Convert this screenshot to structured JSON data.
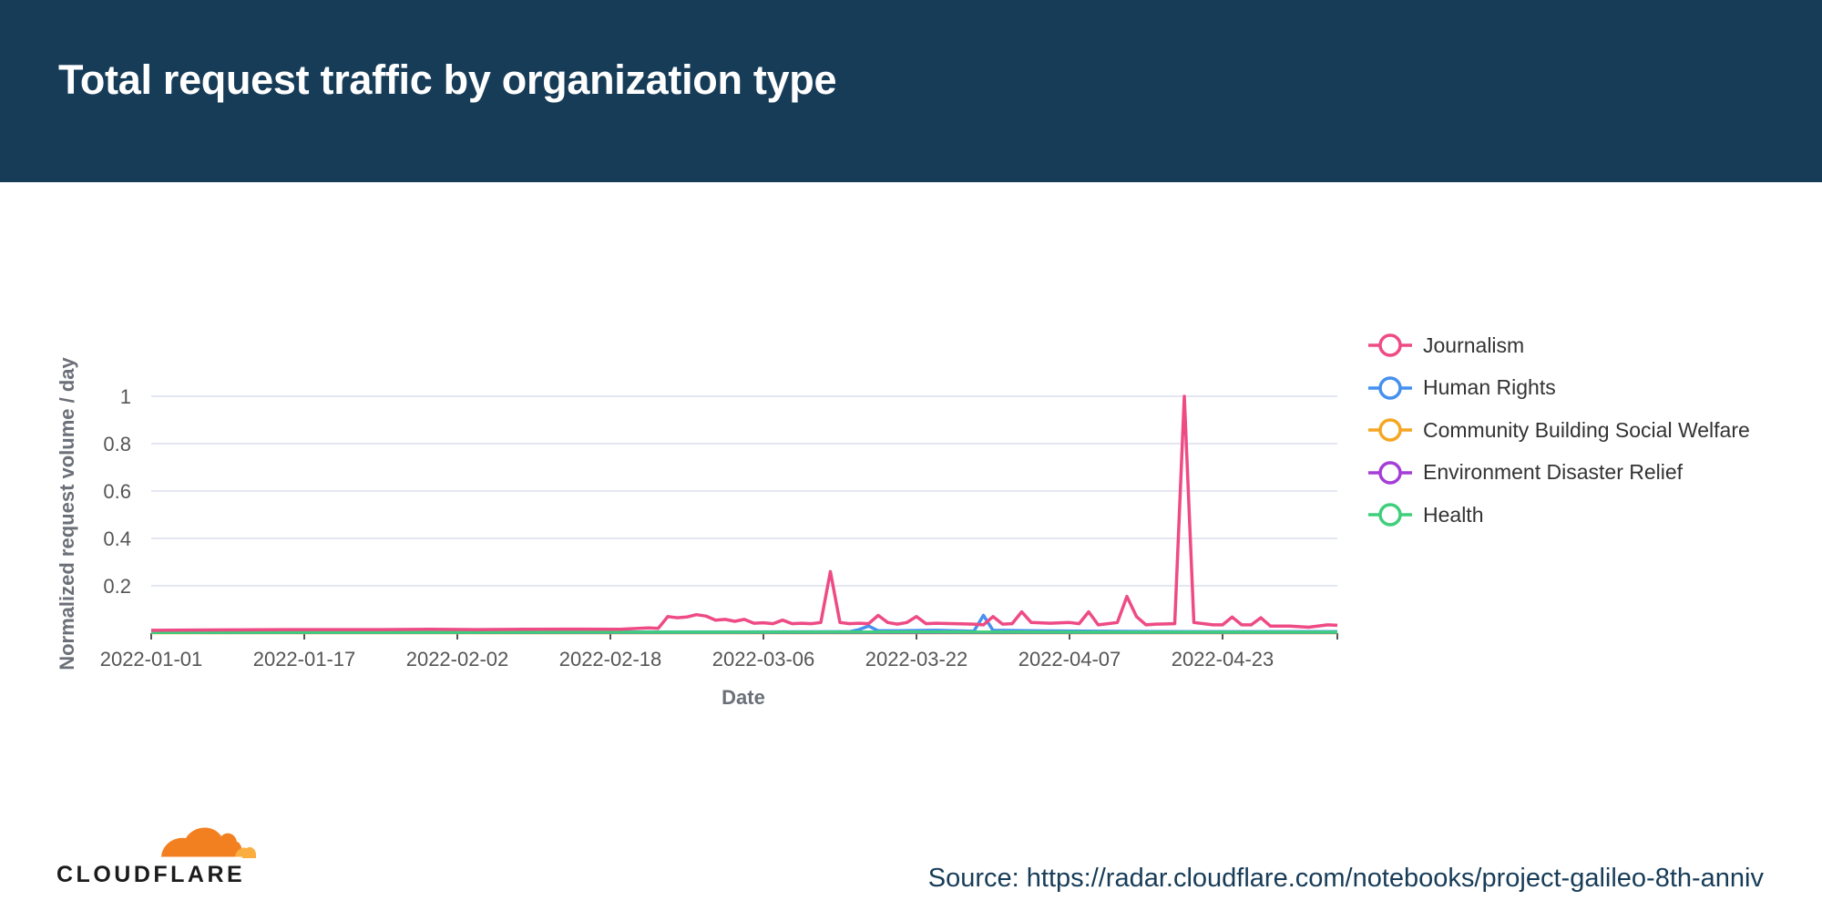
{
  "header": {
    "title": "Total request traffic by organization type"
  },
  "footer": {
    "source": "Source: https://radar.cloudflare.com/notebooks/project-galileo-8th-anniv",
    "logo_text": "CLOUDFLARE"
  },
  "colors": {
    "header_bg": "#173c58",
    "logo_orange": "#f38020",
    "logo_light": "#faae40"
  },
  "chart_data": {
    "type": "line",
    "title": "Total request traffic by organization type",
    "xlabel": "Date",
    "ylabel": "Normalized request volume / day",
    "ylim": [
      0,
      1
    ],
    "yticks": [
      0.2,
      0.4,
      0.6,
      0.8,
      1
    ],
    "ytick_labels": [
      "0.2",
      "0.4",
      "0.6",
      "0.8",
      "1"
    ],
    "x_range": [
      "2022-01-01",
      "2022-05-05"
    ],
    "xticks": [
      "2022-01-01",
      "2022-01-17",
      "2022-02-02",
      "2022-02-18",
      "2022-03-06",
      "2022-03-22",
      "2022-04-07",
      "2022-04-23"
    ],
    "grid": true,
    "legend_position": "right",
    "series": [
      {
        "name": "Journalism",
        "color": "#ee4b85",
        "points": [
          [
            "2022-01-01",
            0.012
          ],
          [
            "2022-01-05",
            0.013
          ],
          [
            "2022-01-10",
            0.014
          ],
          [
            "2022-01-15",
            0.015
          ],
          [
            "2022-01-20",
            0.015
          ],
          [
            "2022-01-25",
            0.015
          ],
          [
            "2022-01-30",
            0.016
          ],
          [
            "2022-02-04",
            0.015
          ],
          [
            "2022-02-09",
            0.016
          ],
          [
            "2022-02-14",
            0.017
          ],
          [
            "2022-02-19",
            0.016
          ],
          [
            "2022-02-22",
            0.022
          ],
          [
            "2022-02-23",
            0.02
          ],
          [
            "2022-02-24",
            0.07
          ],
          [
            "2022-02-25",
            0.065
          ],
          [
            "2022-02-26",
            0.068
          ],
          [
            "2022-02-27",
            0.078
          ],
          [
            "2022-02-28",
            0.072
          ],
          [
            "2022-03-01",
            0.055
          ],
          [
            "2022-03-02",
            0.058
          ],
          [
            "2022-03-03",
            0.05
          ],
          [
            "2022-03-04",
            0.058
          ],
          [
            "2022-03-05",
            0.042
          ],
          [
            "2022-03-06",
            0.044
          ],
          [
            "2022-03-07",
            0.04
          ],
          [
            "2022-03-08",
            0.055
          ],
          [
            "2022-03-09",
            0.04
          ],
          [
            "2022-03-10",
            0.042
          ],
          [
            "2022-03-11",
            0.04
          ],
          [
            "2022-03-12",
            0.045
          ],
          [
            "2022-03-13",
            0.26
          ],
          [
            "2022-03-14",
            0.045
          ],
          [
            "2022-03-15",
            0.04
          ],
          [
            "2022-03-16",
            0.042
          ],
          [
            "2022-03-17",
            0.04
          ],
          [
            "2022-03-18",
            0.075
          ],
          [
            "2022-03-19",
            0.045
          ],
          [
            "2022-03-20",
            0.038
          ],
          [
            "2022-03-21",
            0.045
          ],
          [
            "2022-03-22",
            0.07
          ],
          [
            "2022-03-23",
            0.04
          ],
          [
            "2022-03-24",
            0.042
          ],
          [
            "2022-03-26",
            0.04
          ],
          [
            "2022-03-28",
            0.038
          ],
          [
            "2022-03-29",
            0.035
          ],
          [
            "2022-03-30",
            0.07
          ],
          [
            "2022-03-31",
            0.038
          ],
          [
            "2022-04-01",
            0.04
          ],
          [
            "2022-04-02",
            0.09
          ],
          [
            "2022-04-03",
            0.045
          ],
          [
            "2022-04-05",
            0.042
          ],
          [
            "2022-04-07",
            0.045
          ],
          [
            "2022-04-08",
            0.04
          ],
          [
            "2022-04-09",
            0.09
          ],
          [
            "2022-04-10",
            0.035
          ],
          [
            "2022-04-11",
            0.04
          ],
          [
            "2022-04-12",
            0.045
          ],
          [
            "2022-04-13",
            0.155
          ],
          [
            "2022-04-14",
            0.07
          ],
          [
            "2022-04-15",
            0.035
          ],
          [
            "2022-04-16",
            0.038
          ],
          [
            "2022-04-18",
            0.04
          ],
          [
            "2022-04-19",
            1.0
          ],
          [
            "2022-04-20",
            0.045
          ],
          [
            "2022-04-22",
            0.035
          ],
          [
            "2022-04-23",
            0.035
          ],
          [
            "2022-04-24",
            0.068
          ],
          [
            "2022-04-25",
            0.035
          ],
          [
            "2022-04-26",
            0.035
          ],
          [
            "2022-04-27",
            0.065
          ],
          [
            "2022-04-28",
            0.03
          ],
          [
            "2022-04-30",
            0.03
          ],
          [
            "2022-05-02",
            0.025
          ],
          [
            "2022-05-04",
            0.035
          ],
          [
            "2022-05-05",
            0.033
          ]
        ]
      },
      {
        "name": "Human Rights",
        "color": "#4690ee",
        "points": [
          [
            "2022-01-01",
            0.004
          ],
          [
            "2022-02-01",
            0.004
          ],
          [
            "2022-03-01",
            0.005
          ],
          [
            "2022-03-15",
            0.006
          ],
          [
            "2022-03-16",
            0.015
          ],
          [
            "2022-03-17",
            0.03
          ],
          [
            "2022-03-18",
            0.01
          ],
          [
            "2022-03-20",
            0.01
          ],
          [
            "2022-03-24",
            0.012
          ],
          [
            "2022-03-28",
            0.008
          ],
          [
            "2022-03-29",
            0.075
          ],
          [
            "2022-03-30",
            0.012
          ],
          [
            "2022-04-03",
            0.01
          ],
          [
            "2022-04-10",
            0.008
          ],
          [
            "2022-04-20",
            0.006
          ],
          [
            "2022-05-05",
            0.006
          ]
        ]
      },
      {
        "name": "Community Building Social Welfare",
        "color": "#f5a623",
        "points": [
          [
            "2022-01-01",
            0.002
          ],
          [
            "2022-02-01",
            0.002
          ],
          [
            "2022-03-01",
            0.002
          ],
          [
            "2022-04-01",
            0.002
          ],
          [
            "2022-05-05",
            0.002
          ]
        ]
      },
      {
        "name": "Environment Disaster Relief",
        "color": "#a43ed6",
        "points": [
          [
            "2022-01-01",
            0.003
          ],
          [
            "2022-02-01",
            0.003
          ],
          [
            "2022-03-01",
            0.003
          ],
          [
            "2022-04-01",
            0.003
          ],
          [
            "2022-05-05",
            0.003
          ]
        ]
      },
      {
        "name": "Health",
        "color": "#3fcf7c",
        "points": [
          [
            "2022-01-01",
            0.003
          ],
          [
            "2022-03-01",
            0.004
          ],
          [
            "2022-03-20",
            0.005
          ],
          [
            "2022-04-10",
            0.004
          ],
          [
            "2022-05-05",
            0.004
          ]
        ]
      }
    ]
  }
}
